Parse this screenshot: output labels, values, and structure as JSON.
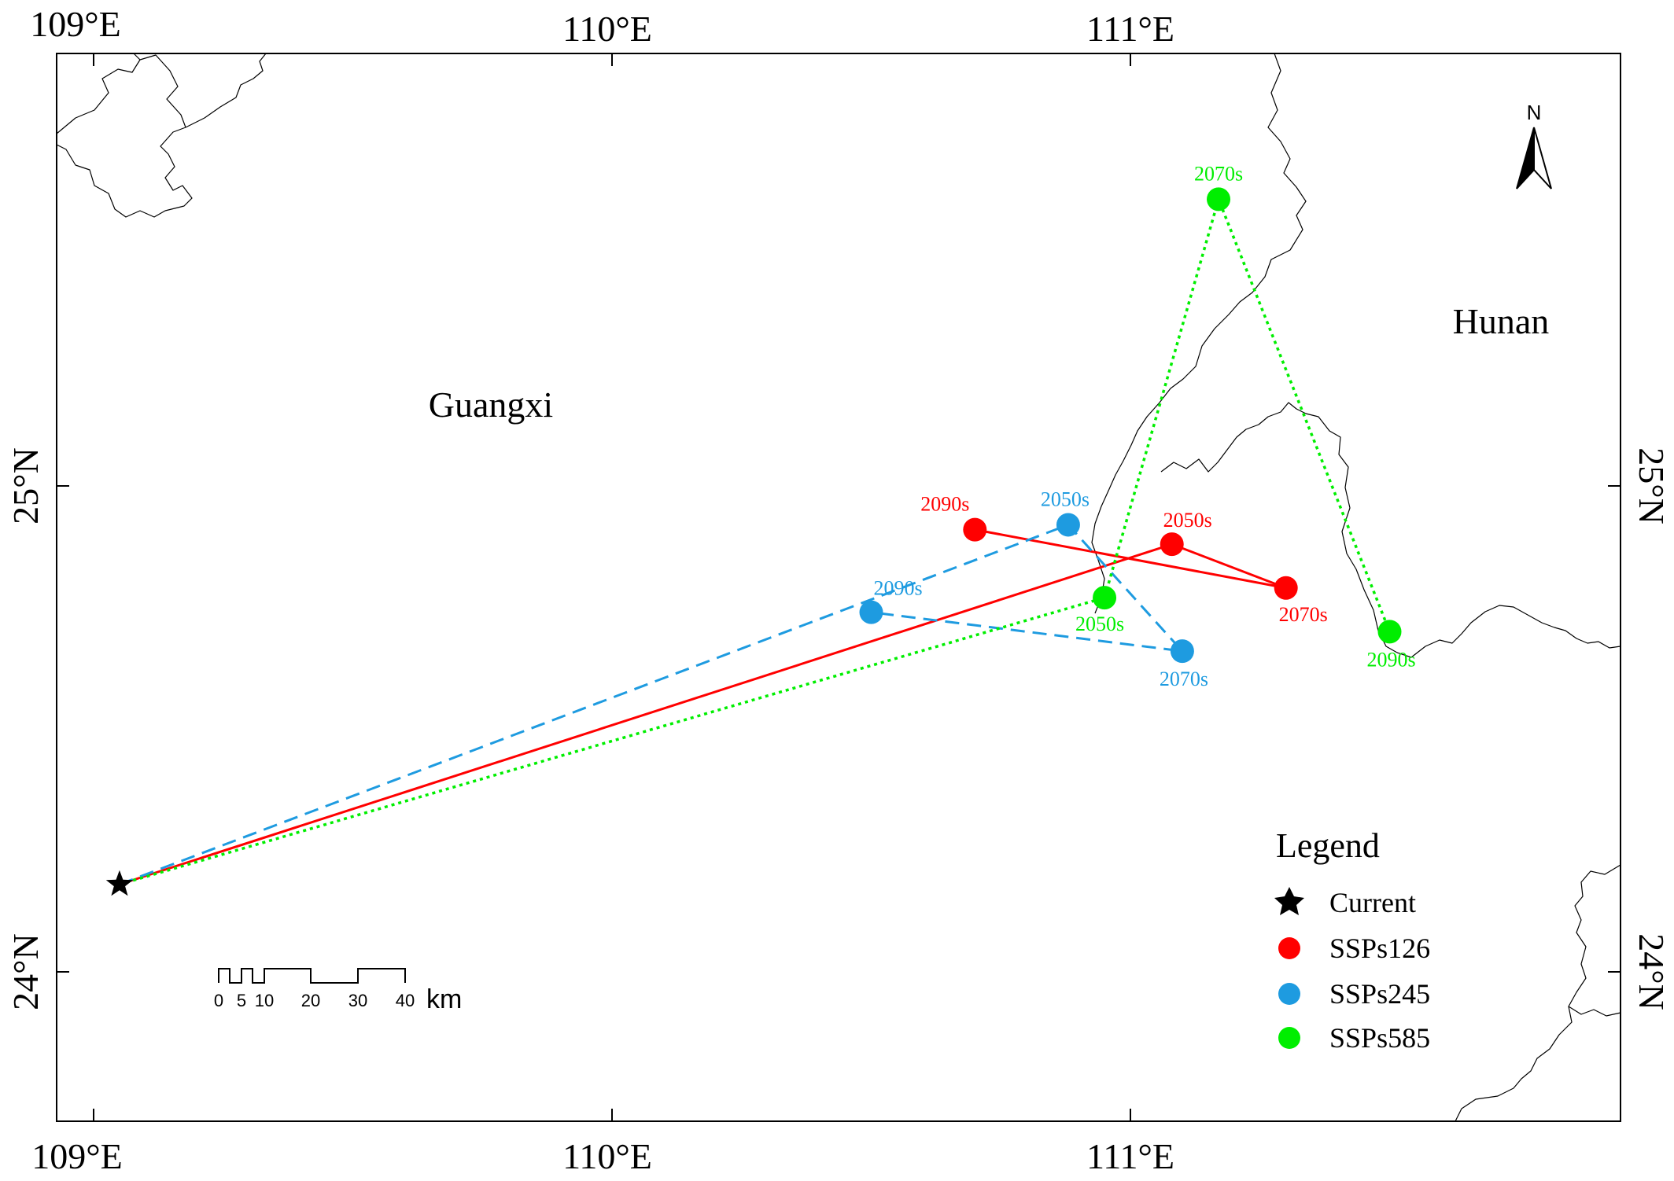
{
  "map": {
    "top_lon_labels": [
      "109°E",
      "110°E",
      "111°E"
    ],
    "bottom_lon_labels": [
      "109°E",
      "110°E",
      "111°E"
    ],
    "left_lat_labels": [
      "25°N",
      "24°N"
    ],
    "right_lat_labels": [
      "25°N",
      "24°N"
    ],
    "north_arrow_label": "N",
    "region_labels": [
      "Guangxi",
      "Hunan"
    ],
    "scale_bar": {
      "ticks": [
        "0",
        "5",
        "10",
        "20",
        "30",
        "40"
      ],
      "unit": "km"
    },
    "legend": {
      "title": "Legend",
      "items": [
        {
          "label": "Current",
          "symbol": "star",
          "color": "#000000"
        },
        {
          "label": "SSPs126",
          "symbol": "circle",
          "color": "#ff0000"
        },
        {
          "label": "SSPs245",
          "symbol": "circle",
          "color": "#1e9be0"
        },
        {
          "label": "SSPs585",
          "symbol": "circle",
          "color": "#00ee00"
        }
      ]
    },
    "current_centroid": {
      "label": "Current",
      "lon": 109.05,
      "lat": 24.18
    },
    "trajectories": [
      {
        "scenario": "SSPs126",
        "color": "#ff0000",
        "line_style": "solid",
        "points": [
          {
            "period": "2050s",
            "lon": 111.08,
            "lat": 24.88
          },
          {
            "period": "2070s",
            "lon": 111.3,
            "lat": 24.79
          },
          {
            "period": "2090s",
            "lon": 110.7,
            "lat": 24.91
          }
        ]
      },
      {
        "scenario": "SSPs245",
        "color": "#1e9be0",
        "line_style": "dashed",
        "points": [
          {
            "period": "2050s",
            "lon": 110.88,
            "lat": 24.92
          },
          {
            "period": "2070s",
            "lon": 111.1,
            "lat": 24.66
          },
          {
            "period": "2090s",
            "lon": 110.5,
            "lat": 24.74
          }
        ]
      },
      {
        "scenario": "SSPs585",
        "color": "#00ee00",
        "line_style": "dotted",
        "points": [
          {
            "period": "2050s",
            "lon": 110.95,
            "lat": 24.77
          },
          {
            "period": "2070s",
            "lon": 111.17,
            "lat": 25.59
          },
          {
            "period": "2090s",
            "lon": 111.5,
            "lat": 24.7
          }
        ]
      }
    ]
  }
}
